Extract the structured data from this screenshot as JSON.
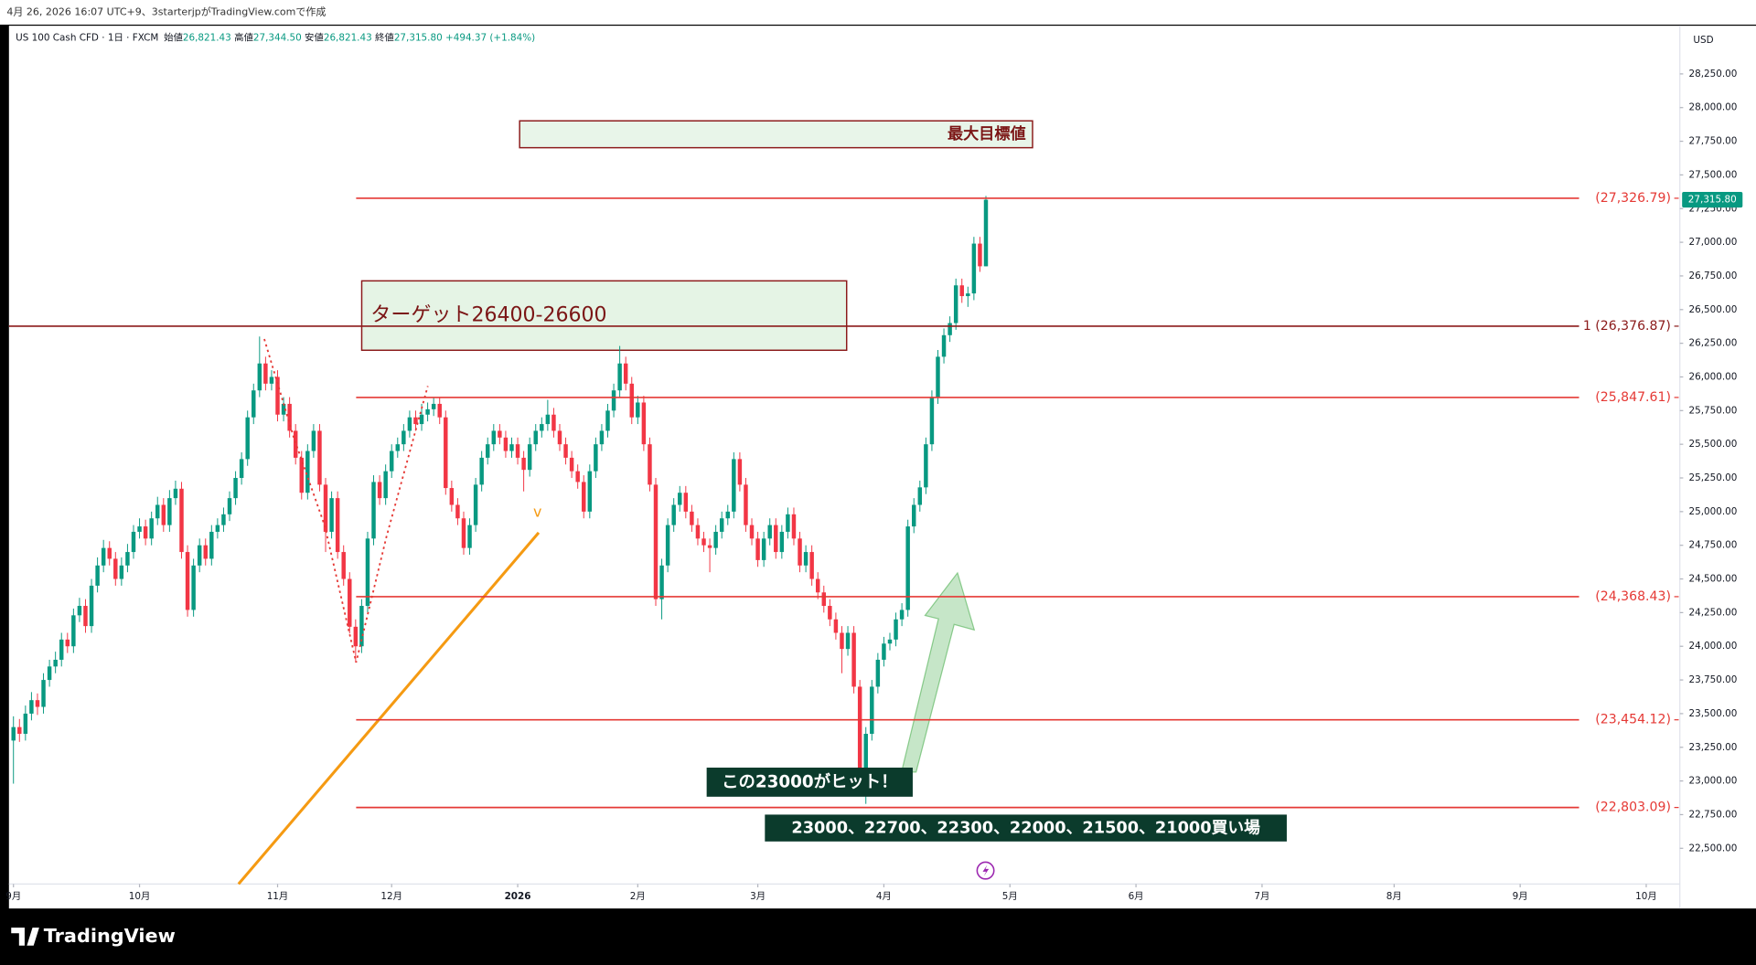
{
  "header": {
    "caption": "4月 26, 2026 16:07 UTC+9、3starterjpがTradingView.comで作成"
  },
  "chart_data": {
    "type": "candlestick",
    "symbol": "US 100 Cash CFD · 1日 · FXCM",
    "ohlc_legend": [
      {
        "label": "始値",
        "value": "26,821.43"
      },
      {
        "label": "高値",
        "value": "27,344.50"
      },
      {
        "label": "安値",
        "value": "26,821.43"
      },
      {
        "label": "終値",
        "value": "27,315.80"
      }
    ],
    "change": "+494.37 (+1.84%)",
    "currency": "USD",
    "last_price_label": "27,315.80",
    "up_color": "#089981",
    "down_color": "#f23645",
    "candles": [
      [
        23300,
        23480,
        22980,
        23400
      ],
      [
        23400,
        23460,
        23290,
        23350
      ],
      [
        23350,
        23560,
        23300,
        23500
      ],
      [
        23500,
        23660,
        23450,
        23600
      ],
      [
        23600,
        23650,
        23490,
        23550
      ],
      [
        23550,
        23800,
        23500,
        23750
      ],
      [
        23750,
        23900,
        23700,
        23850
      ],
      [
        23850,
        23960,
        23800,
        23900
      ],
      [
        23900,
        24100,
        23850,
        24050
      ],
      [
        24050,
        24100,
        23950,
        24000
      ],
      [
        24000,
        24280,
        23950,
        24230
      ],
      [
        24230,
        24360,
        24180,
        24300
      ],
      [
        24300,
        24350,
        24100,
        24150
      ],
      [
        24150,
        24500,
        24100,
        24450
      ],
      [
        24450,
        24660,
        24400,
        24600
      ],
      [
        24600,
        24790,
        24550,
        24730
      ],
      [
        24730,
        24780,
        24600,
        24650
      ],
      [
        24650,
        24700,
        24450,
        24500
      ],
      [
        24500,
        24660,
        24450,
        24600
      ],
      [
        24600,
        24760,
        24550,
        24700
      ],
      [
        24700,
        24900,
        24650,
        24850
      ],
      [
        24850,
        24950,
        24800,
        24890
      ],
      [
        24890,
        24940,
        24750,
        24800
      ],
      [
        24800,
        25000,
        24750,
        24950
      ],
      [
        24950,
        25110,
        24900,
        25050
      ],
      [
        25050,
        25100,
        24850,
        24900
      ],
      [
        24900,
        25160,
        24850,
        25100
      ],
      [
        25100,
        25230,
        25050,
        25170
      ],
      [
        25170,
        25220,
        24650,
        24700
      ],
      [
        24700,
        24750,
        24220,
        24270
      ],
      [
        24270,
        24650,
        24220,
        24600
      ],
      [
        24600,
        24800,
        24550,
        24750
      ],
      [
        24750,
        24800,
        24600,
        24650
      ],
      [
        24650,
        24900,
        24600,
        24850
      ],
      [
        24850,
        24950,
        24800,
        24900
      ],
      [
        24900,
        25030,
        24850,
        24980
      ],
      [
        24980,
        25150,
        24930,
        25100
      ],
      [
        25100,
        25300,
        25050,
        25250
      ],
      [
        25250,
        25440,
        25200,
        25390
      ],
      [
        25390,
        25750,
        25340,
        25700
      ],
      [
        25700,
        25950,
        25650,
        25900
      ],
      [
        25900,
        26300,
        25850,
        26100
      ],
      [
        26100,
        26150,
        25900,
        25950
      ],
      [
        25950,
        26050,
        25900,
        26000
      ],
      [
        26000,
        26050,
        25670,
        25720
      ],
      [
        25720,
        25850,
        25670,
        25800
      ],
      [
        25800,
        25850,
        25550,
        25600
      ],
      [
        25600,
        25650,
        25350,
        25400
      ],
      [
        25400,
        25450,
        25090,
        25140
      ],
      [
        25140,
        25500,
        25090,
        25450
      ],
      [
        25450,
        25650,
        25400,
        25600
      ],
      [
        25600,
        25650,
        25150,
        25200
      ],
      [
        25200,
        25250,
        24700,
        24850
      ],
      [
        24850,
        25150,
        24800,
        25100
      ],
      [
        25100,
        25150,
        24650,
        24700
      ],
      [
        24700,
        24750,
        24450,
        24500
      ],
      [
        24500,
        24550,
        24095,
        24145
      ],
      [
        24145,
        24200,
        23880,
        24000
      ],
      [
        24000,
        24350,
        23950,
        24300
      ],
      [
        24300,
        24850,
        24250,
        24800
      ],
      [
        24800,
        25270,
        24750,
        25220
      ],
      [
        25220,
        25270,
        25050,
        25100
      ],
      [
        25100,
        25350,
        25050,
        25300
      ],
      [
        25300,
        25500,
        25250,
        25450
      ],
      [
        25450,
        25550,
        25400,
        25500
      ],
      [
        25500,
        25650,
        25450,
        25600
      ],
      [
        25600,
        25750,
        25550,
        25700
      ],
      [
        25700,
        25750,
        25600,
        25650
      ],
      [
        25650,
        25800,
        25600,
        25720
      ],
      [
        25720,
        25810,
        25670,
        25760
      ],
      [
        25760,
        25850,
        25710,
        25800
      ],
      [
        25800,
        25850,
        25650,
        25700
      ],
      [
        25700,
        25750,
        25125,
        25175
      ],
      [
        25175,
        25230,
        25000,
        25050
      ],
      [
        25050,
        25100,
        24900,
        24950
      ],
      [
        24950,
        25000,
        24680,
        24730
      ],
      [
        24730,
        24950,
        24680,
        24900
      ],
      [
        24900,
        25250,
        24850,
        25200
      ],
      [
        25200,
        25450,
        25150,
        25400
      ],
      [
        25400,
        25550,
        25350,
        25500
      ],
      [
        25500,
        25650,
        25450,
        25600
      ],
      [
        25600,
        25650,
        25500,
        25550
      ],
      [
        25550,
        25600,
        25400,
        25450
      ],
      [
        25450,
        25550,
        25400,
        25500
      ],
      [
        25500,
        25550,
        25350,
        25400
      ],
      [
        25400,
        25450,
        25150,
        25310
      ],
      [
        25310,
        25550,
        25260,
        25500
      ],
      [
        25500,
        25650,
        25450,
        25600
      ],
      [
        25600,
        25700,
        25550,
        25650
      ],
      [
        25650,
        25830,
        25600,
        25720
      ],
      [
        25720,
        25770,
        25550,
        25600
      ],
      [
        25600,
        25650,
        25450,
        25500
      ],
      [
        25500,
        25550,
        25350,
        25400
      ],
      [
        25400,
        25450,
        25250,
        25300
      ],
      [
        25300,
        25350,
        25170,
        25220
      ],
      [
        25220,
        25270,
        24950,
        25000
      ],
      [
        25000,
        25350,
        24950,
        25300
      ],
      [
        25300,
        25550,
        25250,
        25500
      ],
      [
        25500,
        25650,
        25450,
        25600
      ],
      [
        25600,
        25800,
        25550,
        25750
      ],
      [
        25750,
        25950,
        25700,
        25900
      ],
      [
        25900,
        26230,
        25850,
        26100
      ],
      [
        26100,
        26150,
        25900,
        25950
      ],
      [
        25950,
        26000,
        25650,
        25700
      ],
      [
        25700,
        25860,
        25650,
        25810
      ],
      [
        25810,
        25860,
        25450,
        25500
      ],
      [
        25500,
        25550,
        25150,
        25200
      ],
      [
        25200,
        25250,
        24300,
        24350
      ],
      [
        24350,
        24650,
        24200,
        24600
      ],
      [
        24600,
        24950,
        24550,
        24900
      ],
      [
        24900,
        25100,
        24850,
        25050
      ],
      [
        25050,
        25190,
        25000,
        25140
      ],
      [
        25140,
        25190,
        24950,
        25000
      ],
      [
        25000,
        25050,
        24850,
        24900
      ],
      [
        24900,
        24950,
        24750,
        24800
      ],
      [
        24800,
        24850,
        24700,
        24750
      ],
      [
        24750,
        24800,
        24550,
        24730
      ],
      [
        24730,
        24900,
        24680,
        24850
      ],
      [
        24850,
        25000,
        24800,
        24950
      ],
      [
        24950,
        25050,
        24900,
        25000
      ],
      [
        25000,
        25440,
        24950,
        25390
      ],
      [
        25390,
        25440,
        25150,
        25200
      ],
      [
        25200,
        25250,
        24850,
        24900
      ],
      [
        24900,
        24950,
        24750,
        24800
      ],
      [
        24800,
        24850,
        24590,
        24640
      ],
      [
        24640,
        24850,
        24590,
        24800
      ],
      [
        24800,
        24950,
        24750,
        24900
      ],
      [
        24900,
        24950,
        24650,
        24700
      ],
      [
        24700,
        24900,
        24650,
        24850
      ],
      [
        24850,
        25030,
        24800,
        24980
      ],
      [
        24980,
        25030,
        24750,
        24800
      ],
      [
        24800,
        24850,
        24550,
        24600
      ],
      [
        24600,
        24750,
        24550,
        24700
      ],
      [
        24700,
        24750,
        24450,
        24500
      ],
      [
        24500,
        24550,
        24350,
        24400
      ],
      [
        24400,
        24450,
        24250,
        24300
      ],
      [
        24300,
        24350,
        24150,
        24200
      ],
      [
        24200,
        24250,
        24050,
        24100
      ],
      [
        24100,
        24150,
        23800,
        23980
      ],
      [
        23980,
        24150,
        23930,
        24100
      ],
      [
        24100,
        24150,
        23650,
        23700
      ],
      [
        23700,
        23750,
        22900,
        23070
      ],
      [
        23070,
        23400,
        22830,
        23350
      ],
      [
        23350,
        23750,
        23300,
        23700
      ],
      [
        23700,
        23950,
        23650,
        23900
      ],
      [
        23900,
        24070,
        23850,
        24020
      ],
      [
        24020,
        24100,
        23970,
        24050
      ],
      [
        24050,
        24250,
        24000,
        24200
      ],
      [
        24200,
        24320,
        24150,
        24270
      ],
      [
        24270,
        24940,
        24220,
        24890
      ],
      [
        24890,
        25100,
        24840,
        25050
      ],
      [
        25050,
        25230,
        25000,
        25180
      ],
      [
        25180,
        25550,
        25130,
        25500
      ],
      [
        25500,
        25900,
        25450,
        25850
      ],
      [
        25850,
        26200,
        25800,
        26150
      ],
      [
        26150,
        26360,
        26100,
        26310
      ],
      [
        26310,
        26450,
        26260,
        26400
      ],
      [
        26400,
        26730,
        26350,
        26680
      ],
      [
        26680,
        26730,
        26550,
        26600
      ],
      [
        26600,
        26670,
        26520,
        26620
      ],
      [
        26620,
        27040,
        26570,
        26990
      ],
      [
        26990,
        27040,
        26780,
        26821.43
      ],
      [
        26821.43,
        27344.5,
        26821.43,
        27315.8
      ]
    ],
    "xlim": [
      -0.75,
      277.6
    ],
    "xticks": [
      {
        "value": 0,
        "label": "9月"
      },
      {
        "value": 21,
        "label": "10月"
      },
      {
        "value": 44,
        "label": "11月"
      },
      {
        "value": 63,
        "label": "12月"
      },
      {
        "value": 84,
        "label": "2026"
      },
      {
        "value": 104,
        "label": "2月"
      },
      {
        "value": 124,
        "label": "3月"
      },
      {
        "value": 145,
        "label": "4月"
      },
      {
        "value": 166,
        "label": "5月"
      },
      {
        "value": 187,
        "label": "6月"
      },
      {
        "value": 208,
        "label": "7月"
      },
      {
        "value": 230,
        "label": "8月"
      },
      {
        "value": 251,
        "label": "9月"
      },
      {
        "value": 272,
        "label": "10月"
      }
    ],
    "ylim": [
      22235,
      28616
    ],
    "yticks": [
      {
        "value": 22500,
        "label": "22,500.00"
      },
      {
        "value": 22750,
        "label": "22,750.00"
      },
      {
        "value": 23000,
        "label": "23,000.00"
      },
      {
        "value": 23250,
        "label": "23,250.00"
      },
      {
        "value": 23500,
        "label": "23,500.00"
      },
      {
        "value": 23750,
        "label": "23,750.00"
      },
      {
        "value": 24000,
        "label": "24,000.00"
      },
      {
        "value": 24250,
        "label": "24,250.00"
      },
      {
        "value": 24500,
        "label": "24,500.00"
      },
      {
        "value": 24750,
        "label": "24,750.00"
      },
      {
        "value": 25000,
        "label": "25,000.00"
      },
      {
        "value": 25250,
        "label": "25,250.00"
      },
      {
        "value": 25500,
        "label": "25,500.00"
      },
      {
        "value": 25750,
        "label": "25,750.00"
      },
      {
        "value": 26000,
        "label": "26,000.00"
      },
      {
        "value": 26250,
        "label": "26,250.00"
      },
      {
        "value": 26500,
        "label": "26,500.00"
      },
      {
        "value": 26750,
        "label": "26,750.00"
      },
      {
        "value": 27000,
        "label": "27,000.00"
      },
      {
        "value": 27250,
        "label": "27,250.00"
      },
      {
        "value": 27500,
        "label": "27,500.00"
      },
      {
        "value": 27750,
        "label": "27,750.00"
      },
      {
        "value": 28000,
        "label": "28,000.00"
      },
      {
        "value": 28250,
        "label": "28,250.00"
      }
    ],
    "grid": false,
    "levels": [
      {
        "value": 27326.79,
        "label": "(27,326.79)",
        "color": "#e53935",
        "extend": "right"
      },
      {
        "value": 26376.87,
        "label": "1 (26,376.87)",
        "color": "#8b1a1a",
        "extend": "both"
      },
      {
        "value": 25847.61,
        "label": "(25,847.61)",
        "color": "#e53935",
        "extend": "right"
      },
      {
        "value": 24368.43,
        "label": "(24,368.43)",
        "color": "#e53935",
        "extend": "right"
      },
      {
        "value": 23454.12,
        "label": "(23,454.12)",
        "color": "#e53935",
        "extend": "right"
      },
      {
        "value": 22803.09,
        "label": "(22,803.09)",
        "color": "#e53935",
        "extend": "right"
      }
    ],
    "annotations": {
      "max_target": "最大目標値",
      "target_zone": "ターゲット26400-26600",
      "hit_note": "この23000がヒット！",
      "buy_zones": "23000、22700、22300、22000、21500、21000買い場",
      "pattern_mark": "v"
    }
  },
  "footer": {
    "brand": "TradingView"
  }
}
